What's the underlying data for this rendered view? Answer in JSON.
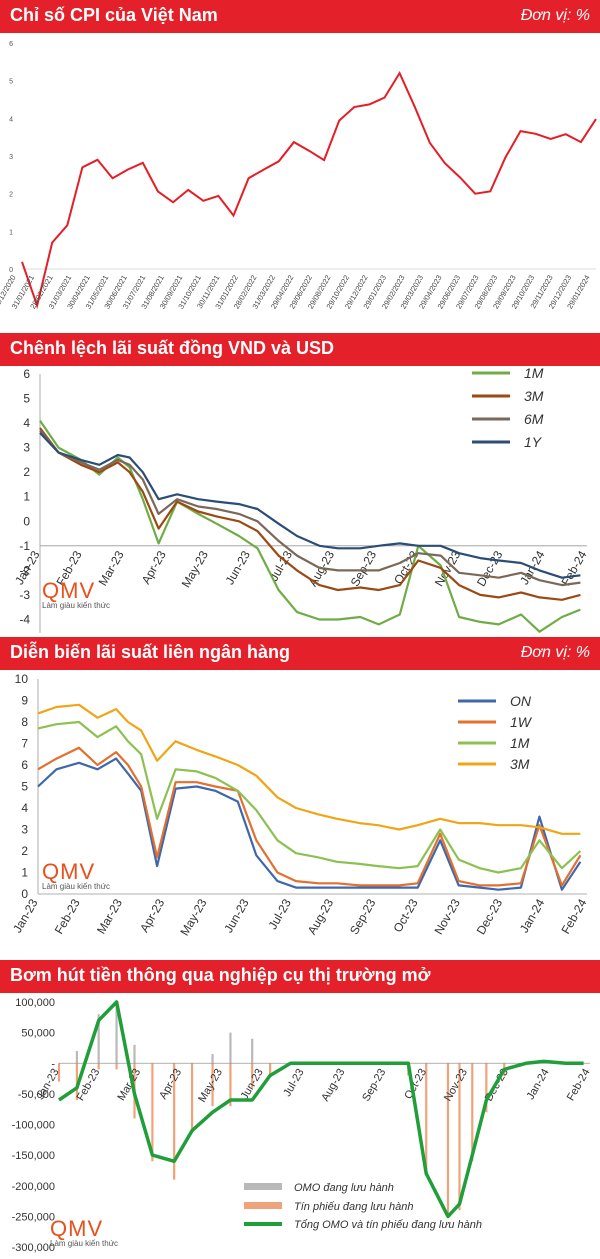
{
  "panels": {
    "cpi": {
      "title": "Chỉ số CPI của Việt Nam",
      "unit": "Đơn vị: %"
    },
    "spread": {
      "title": "Chênh lệch lãi suất đồng VND và USD"
    },
    "interbank": {
      "title": "Diễn biến lãi suất liên ngân hàng",
      "unit": "Đơn vị: %"
    },
    "omo": {
      "title": "Bơm hút tiền thông qua nghiệp cụ thị trường mở"
    }
  },
  "logo": {
    "mark": "QMV",
    "tagline": "Làm giàu kiến thức"
  },
  "colors": {
    "header": "#e4202a",
    "cpi_line": "#e41e26",
    "m1": "#6fac46",
    "m3": "#9b4a14",
    "m6": "#7a6858",
    "y1": "#2b4d76",
    "on": "#3f67ad",
    "w1": "#e2702e",
    "im1": "#8cc152",
    "im3": "#f0a516",
    "omo_bar": "#b9b9b9",
    "tp_bar": "#f0a27a",
    "total": "#1f9e3a"
  },
  "chart_data": [
    {
      "type": "line",
      "title": "Chỉ số CPI của Việt Nam",
      "ylim": [
        0,
        6
      ],
      "yticks": [
        0,
        1,
        2,
        3,
        4,
        5,
        6
      ],
      "x": [
        "31/12/2020",
        "31/01/2021",
        "28/02/2021",
        "31/03/2021",
        "30/04/2021",
        "31/05/2021",
        "30/06/2021",
        "31/07/2021",
        "31/08/2021",
        "30/09/2021",
        "31/10/2021",
        "30/11/2021",
        "31/12/2021",
        "31/01/2022",
        "28/02/2022",
        "31/03/2022",
        "29/04/2022",
        "31/05/2022",
        "29/06/2022",
        "31/07/2022",
        "29/08/2022",
        "30/09/2022",
        "29/10/2022",
        "30/11/2022",
        "29/12/2022",
        "29/01/2023",
        "28/02/2023",
        "29/03/2023",
        "29/04/2023",
        "29/05/2023",
        "29/06/2023",
        "29/07/2023",
        "29/08/2023",
        "29/09/2023",
        "29/10/2023",
        "29/11/2023",
        "29/12/2023",
        "29/01/2024",
        "29/02/2024"
      ],
      "series": [
        {
          "values": [
            0.19,
            -0.97,
            0.7,
            1.16,
            2.7,
            2.9,
            2.41,
            2.64,
            2.82,
            2.06,
            1.77,
            2.1,
            1.81,
            1.94,
            1.42,
            2.41,
            2.64,
            2.86,
            3.37,
            3.14,
            2.89,
            3.94,
            4.3,
            4.37,
            4.55,
            5.2,
            4.31,
            3.35,
            2.81,
            2.43,
            2.0,
            2.06,
            2.96,
            3.66,
            3.59,
            3.45,
            3.58,
            3.37,
            3.98
          ]
        }
      ],
      "xlabel_visible": [
        "31/12/2020",
        "31/01/2021",
        "28/02/2021",
        "31/03/2021",
        "30/04/2021",
        "31/05/2021",
        "30/06/2021",
        "31/07/2021",
        "31/08/2021",
        "30/09/2021",
        "31/10/2021",
        "30/11/2021",
        "31/01/2022",
        "28/02/2022",
        "31/03/2022",
        "29/04/2022",
        "29/06/2022",
        "29/08/2022",
        "29/10/2022",
        "29/12/2022",
        "29/01/2023",
        "29/02/2023",
        "29/03/2023",
        "29/04/2023",
        "29/06/2023",
        "29/07/2023",
        "29/08/2023",
        "29/09/2023",
        "29/10/2023",
        "29/11/2023",
        "29/12/2023",
        "29/01/2024"
      ],
      "grid": false
    },
    {
      "type": "line",
      "title": "Chênh lệch lãi suất đồng VND và USD",
      "ylim": [
        -5,
        6
      ],
      "yticks": [
        6,
        5,
        4,
        3,
        2,
        1,
        0,
        -1,
        -2,
        -3,
        -4,
        -5
      ],
      "xticks": [
        "Jan-23",
        "Feb-23",
        "Mar-23",
        "Apr-23",
        "May-23",
        "Jun-23",
        "Jul-23",
        "Aug-23",
        "Sep-23",
        "Oct-23",
        "Nov-23",
        "Dec-23",
        "Jan-24",
        "Feb-24"
      ],
      "x_dates": [
        "2023-01-01",
        "2023-01-15",
        "2023-02-01",
        "2023-02-15",
        "2023-03-01",
        "2023-03-10",
        "2023-03-20",
        "2023-04-01",
        "2023-04-15",
        "2023-05-01",
        "2023-05-15",
        "2023-06-01",
        "2023-06-15",
        "2023-07-01",
        "2023-07-15",
        "2023-08-01",
        "2023-08-15",
        "2023-09-01",
        "2023-09-15",
        "2023-10-01",
        "2023-10-15",
        "2023-11-01",
        "2023-11-15",
        "2023-12-01",
        "2023-12-15",
        "2024-01-01",
        "2024-01-15",
        "2024-02-01",
        "2024-02-15"
      ],
      "legend": "top-right",
      "series": [
        {
          "name": "1M",
          "values": [
            4.1,
            3.0,
            2.5,
            1.9,
            2.6,
            2.2,
            0.9,
            -0.9,
            0.8,
            0.3,
            -0.1,
            -0.6,
            -1.1,
            -2.8,
            -3.7,
            -4.0,
            -4.0,
            -3.9,
            -4.2,
            -3.8,
            -1.0,
            -1.8,
            -3.9,
            -4.1,
            -4.2,
            -3.8,
            -4.5,
            -3.9,
            -3.6
          ]
        },
        {
          "name": "3M",
          "values": [
            3.8,
            2.8,
            2.3,
            2.0,
            2.4,
            2.0,
            1.2,
            -0.3,
            0.8,
            0.4,
            0.2,
            0.0,
            -0.4,
            -1.4,
            -2.0,
            -2.6,
            -2.8,
            -2.7,
            -2.8,
            -2.6,
            -1.6,
            -1.9,
            -2.6,
            -3.0,
            -3.1,
            -2.9,
            -3.1,
            -3.2,
            -3.0
          ]
        },
        {
          "name": "6M",
          "values": [
            3.7,
            2.8,
            2.4,
            2.1,
            2.5,
            2.3,
            1.7,
            0.3,
            0.9,
            0.6,
            0.5,
            0.3,
            0.0,
            -0.8,
            -1.4,
            -1.9,
            -2.0,
            -2.0,
            -2.0,
            -1.7,
            -1.3,
            -1.4,
            -2.1,
            -2.2,
            -2.3,
            -2.1,
            -2.4,
            -2.6,
            -2.5
          ]
        },
        {
          "name": "1Y",
          "values": [
            3.6,
            2.8,
            2.5,
            2.3,
            2.7,
            2.6,
            2.0,
            0.9,
            1.1,
            0.9,
            0.8,
            0.7,
            0.5,
            -0.1,
            -0.6,
            -1.0,
            -1.1,
            -1.1,
            -1.0,
            -0.9,
            -1.0,
            -1.0,
            -1.3,
            -1.5,
            -1.6,
            -1.7,
            -2.0,
            -2.3,
            -2.2
          ]
        }
      ]
    },
    {
      "type": "line",
      "title": "Diễn biến lãi suất liên ngân hàng",
      "ylim": [
        0,
        10
      ],
      "yticks": [
        0,
        1,
        2,
        3,
        4,
        5,
        6,
        7,
        8,
        9,
        10
      ],
      "xticks": [
        "Jan-23",
        "Feb-23",
        "Mar-23",
        "Apr-23",
        "May-23",
        "Jun-23",
        "Jul-23",
        "Aug-23",
        "Sep-23",
        "Oct-23",
        "Nov-23",
        "Dec-23",
        "Jan-24",
        "Feb-24"
      ],
      "x_dates": [
        "2023-01-01",
        "2023-01-15",
        "2023-02-01",
        "2023-02-15",
        "2023-03-01",
        "2023-03-10",
        "2023-03-20",
        "2023-04-01",
        "2023-04-15",
        "2023-05-01",
        "2023-05-15",
        "2023-06-01",
        "2023-06-15",
        "2023-07-01",
        "2023-07-15",
        "2023-08-01",
        "2023-08-15",
        "2023-09-01",
        "2023-09-15",
        "2023-10-01",
        "2023-10-15",
        "2023-11-01",
        "2023-11-15",
        "2023-12-01",
        "2023-12-15",
        "2024-01-01",
        "2024-01-15",
        "2024-02-01",
        "2024-02-15"
      ],
      "legend": "top-right",
      "series": [
        {
          "name": "ON",
          "values": [
            5.0,
            5.8,
            6.1,
            5.8,
            6.3,
            5.6,
            4.8,
            1.3,
            4.9,
            5.0,
            4.8,
            4.3,
            1.8,
            0.6,
            0.3,
            0.3,
            0.3,
            0.3,
            0.3,
            0.3,
            0.3,
            2.5,
            0.4,
            0.3,
            0.2,
            0.3,
            3.6,
            0.2,
            1.5
          ]
        },
        {
          "name": "1W",
          "values": [
            5.8,
            6.3,
            6.8,
            6.0,
            6.6,
            6.0,
            5.0,
            1.7,
            5.2,
            5.2,
            5.0,
            4.8,
            2.5,
            1.0,
            0.6,
            0.5,
            0.5,
            0.4,
            0.4,
            0.4,
            0.5,
            2.8,
            0.6,
            0.4,
            0.4,
            0.5,
            3.2,
            0.4,
            1.8
          ]
        },
        {
          "name": "1M",
          "values": [
            7.7,
            7.9,
            8.0,
            7.3,
            7.8,
            7.1,
            6.5,
            3.5,
            5.8,
            5.7,
            5.4,
            4.8,
            3.9,
            2.5,
            1.9,
            1.7,
            1.5,
            1.4,
            1.3,
            1.2,
            1.3,
            3.0,
            1.6,
            1.2,
            1.0,
            1.2,
            2.5,
            1.2,
            2.0
          ]
        },
        {
          "name": "3M",
          "values": [
            8.4,
            8.7,
            8.8,
            8.2,
            8.6,
            8.0,
            7.6,
            6.2,
            7.1,
            6.7,
            6.4,
            6.0,
            5.5,
            4.5,
            4.0,
            3.7,
            3.5,
            3.3,
            3.2,
            3.0,
            3.2,
            3.5,
            3.3,
            3.3,
            3.2,
            3.2,
            3.1,
            2.8,
            2.8
          ]
        }
      ]
    },
    {
      "type": "bar",
      "title": "Bơm hút tiền thông qua nghiệp cụ thị trường mở",
      "ylim": [
        -300000,
        100000
      ],
      "yticks": [
        "100,000",
        "50,000",
        "-",
        "-50,000",
        "-100,000",
        "-150,000",
        "-200,000",
        "-250,000",
        "-300,000"
      ],
      "xticks": [
        "Jan-23",
        "Feb-23",
        "Mar-23",
        "Apr-23",
        "May-23",
        "Jun-23",
        "Jul-23",
        "Aug-23",
        "Sep-23",
        "Oct-23",
        "Nov-23",
        "Dec-23",
        "Jan-24",
        "Feb-24"
      ],
      "x_dates": [
        "2023-01-01",
        "2023-01-15",
        "2023-02-01",
        "2023-02-15",
        "2023-03-01",
        "2023-03-15",
        "2023-04-01",
        "2023-04-15",
        "2023-05-01",
        "2023-05-15",
        "2023-06-01",
        "2023-06-15",
        "2023-07-01",
        "2023-08-01",
        "2023-09-01",
        "2023-10-01",
        "2023-10-15",
        "2023-11-01",
        "2023-11-10",
        "2023-11-20",
        "2023-12-01",
        "2023-12-15",
        "2024-01-01",
        "2024-01-15",
        "2024-02-01",
        "2024-02-15"
      ],
      "legend": "bottom-right",
      "series": [
        {
          "name": "OMO đang lưu hành",
          "values": [
            0,
            20000,
            80000,
            95000,
            30000,
            0,
            0,
            0,
            15000,
            50000,
            40000,
            0,
            0,
            0,
            0,
            0,
            0,
            0,
            0,
            0,
            0,
            0,
            0,
            0,
            0,
            0
          ]
        },
        {
          "name": "Tín phiếu đang lưu hành",
          "values": [
            -30000,
            -60000,
            -10000,
            -10000,
            -90000,
            -160000,
            -190000,
            -110000,
            -70000,
            -70000,
            -40000,
            -20000,
            0,
            0,
            0,
            -20000,
            -180000,
            -250000,
            -240000,
            -160000,
            -80000,
            -20000,
            0,
            0,
            0,
            0
          ]
        },
        {
          "name": "Tổng OMO và tín phiếu đang lưu hành",
          "values": [
            -60000,
            -40000,
            70000,
            100000,
            -50000,
            -150000,
            -160000,
            -110000,
            -80000,
            -60000,
            -60000,
            -20000,
            0,
            0,
            0,
            0,
            -180000,
            -250000,
            -230000,
            -150000,
            -60000,
            -10000,
            0,
            3000,
            0,
            0
          ]
        }
      ]
    }
  ]
}
